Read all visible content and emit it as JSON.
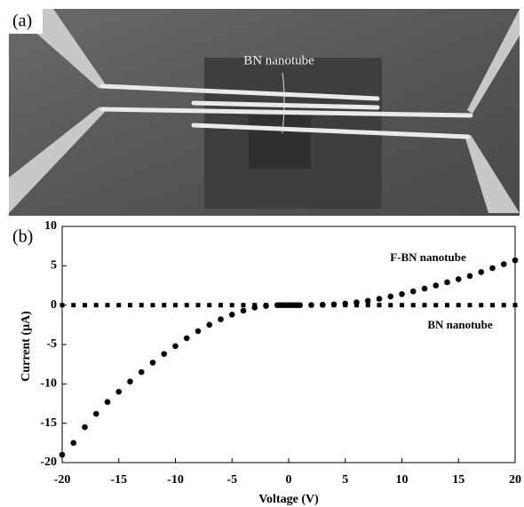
{
  "figure": {
    "panel_a": "(a)",
    "panel_b": "(b)",
    "image_annotation": "BN nanotube"
  },
  "chart_data": {
    "type": "scatter",
    "xlabel": "Voltage (V)",
    "ylabel": "Current (μA)",
    "xlim": [
      -20,
      20
    ],
    "ylim": [
      -20,
      10
    ],
    "xticks": [
      -20,
      -15,
      -10,
      -5,
      0,
      5,
      10,
      15,
      20
    ],
    "yticks": [
      -20,
      -15,
      -10,
      -5,
      0,
      5,
      10
    ],
    "series": [
      {
        "name": "F-BN nanotube",
        "color": "#000000",
        "marker": "circle",
        "x": [
          -20,
          -19,
          -18,
          -17,
          -16,
          -15,
          -14,
          -13,
          -12,
          -11,
          -10,
          -9,
          -8,
          -7,
          -6,
          -5,
          -4,
          -3,
          -2,
          -1,
          -0.75,
          -0.5,
          -0.25,
          0,
          0.25,
          0.5,
          0.75,
          1,
          2,
          3,
          4,
          5,
          6,
          7,
          8,
          9,
          10,
          11,
          12,
          13,
          14,
          15,
          16,
          17,
          18,
          19,
          20
        ],
        "values": [
          -19,
          -17.5,
          -15.5,
          -13.8,
          -12.3,
          -11,
          -9.7,
          -8.5,
          -7.3,
          -6.2,
          -5.2,
          -4.2,
          -3.3,
          -2.5,
          -1.8,
          -1.2,
          -0.7,
          -0.3,
          -0.1,
          0,
          0,
          0,
          0,
          0,
          0,
          0,
          0,
          0,
          0.02,
          0.05,
          0.1,
          0.2,
          0.35,
          0.55,
          0.8,
          1.1,
          1.4,
          1.75,
          2.1,
          2.5,
          2.9,
          3.3,
          3.7,
          4.2,
          4.7,
          5.2,
          5.7
        ]
      },
      {
        "name": "BN nanotube",
        "color": "#000000",
        "marker": "square",
        "x": [
          -20,
          -19,
          -18,
          -17,
          -16,
          -15,
          -14,
          -13,
          -12,
          -11,
          -10,
          -9,
          -8,
          -7,
          -6,
          -5,
          -4,
          -3,
          -2,
          -1,
          0,
          1,
          2,
          3,
          4,
          5,
          6,
          7,
          8,
          9,
          10,
          11,
          12,
          13,
          14,
          15,
          16,
          17,
          18,
          19,
          20
        ],
        "values": [
          0,
          0,
          0,
          0,
          0,
          0,
          0,
          0,
          0,
          0,
          0,
          0,
          0,
          0,
          0,
          0,
          0,
          0,
          0,
          0,
          0,
          0,
          0,
          0,
          0,
          0,
          0,
          0,
          0,
          0,
          0,
          0,
          0,
          0,
          0,
          0,
          0,
          0,
          0,
          0,
          0
        ]
      }
    ]
  }
}
